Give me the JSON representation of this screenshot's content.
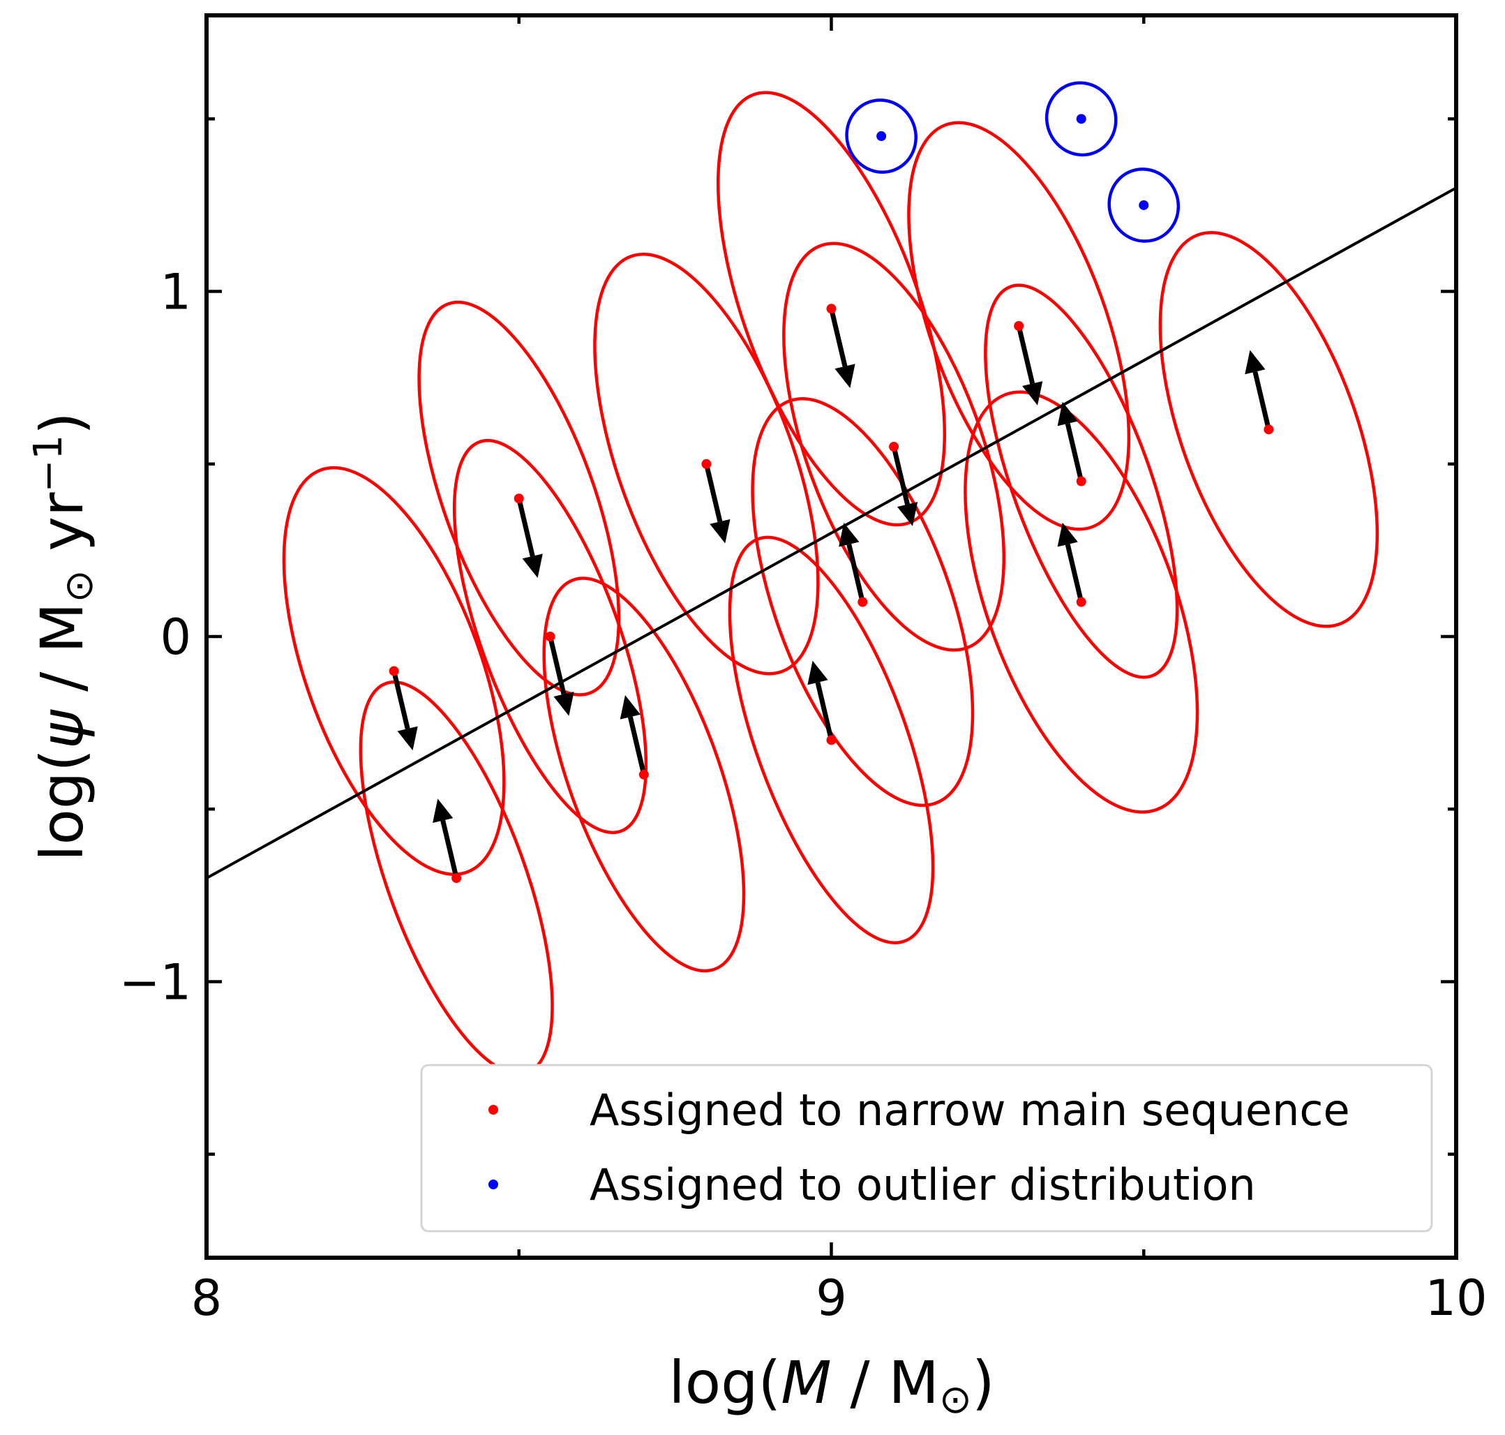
{
  "chart_data": {
    "type": "scatter",
    "xlabel_parts": {
      "pre": "log(",
      "var": "M",
      "sep": " / ",
      "unit": "M",
      "sub": "⊙",
      "post": ")"
    },
    "ylabel_parts": {
      "pre": "log(",
      "var": "ψ",
      "sep": " / ",
      "unit": "M",
      "sub": "⊙",
      "mid": " yr",
      "sup": "−1",
      "post": ")"
    },
    "xlim": [
      8,
      10
    ],
    "ylim": [
      -1.8,
      1.8
    ],
    "xticks": [
      8,
      9,
      10
    ],
    "xtick_labels": [
      "8",
      "9",
      "10"
    ],
    "xticks_minor": [
      8.5,
      9.5
    ],
    "yticks": [
      -1,
      0,
      1
    ],
    "ytick_labels": [
      "−1",
      "0",
      "1"
    ],
    "yticks_minor": [
      -1.5,
      -0.5,
      0.5,
      1.5
    ],
    "fit_line": {
      "x": [
        8,
        10
      ],
      "y": [
        -0.7,
        1.3
      ],
      "color": "#000000"
    },
    "series": [
      {
        "name": "Assigned to narrow main sequence",
        "color": "#ff0000",
        "points": [
          {
            "x": 8.3,
            "y": -0.1,
            "dx": 0.03,
            "dy": -0.23,
            "ex": 0.14,
            "ey": 0.62
          },
          {
            "x": 8.4,
            "y": -0.7,
            "dx": -0.03,
            "dy": 0.23,
            "ex": 0.11,
            "ey": 0.6
          },
          {
            "x": 8.5,
            "y": 0.4,
            "dx": 0.03,
            "dy": -0.23,
            "ex": 0.12,
            "ey": 0.6
          },
          {
            "x": 8.55,
            "y": 0.0,
            "dx": 0.03,
            "dy": -0.23,
            "ex": 0.11,
            "ey": 0.6
          },
          {
            "x": 8.7,
            "y": -0.4,
            "dx": -0.03,
            "dy": 0.23,
            "ex": 0.12,
            "ey": 0.6
          },
          {
            "x": 8.8,
            "y": 0.5,
            "dx": 0.03,
            "dy": -0.23,
            "ex": 0.14,
            "ey": 0.64
          },
          {
            "x": 9.0,
            "y": 0.95,
            "dx": 0.03,
            "dy": -0.23,
            "ex": 0.14,
            "ey": 0.66
          },
          {
            "x": 9.0,
            "y": -0.3,
            "dx": -0.03,
            "dy": 0.23,
            "ex": 0.12,
            "ey": 0.62
          },
          {
            "x": 9.05,
            "y": 0.1,
            "dx": -0.03,
            "dy": 0.23,
            "ex": 0.14,
            "ey": 0.62
          },
          {
            "x": 9.1,
            "y": 0.55,
            "dx": 0.03,
            "dy": -0.23,
            "ex": 0.14,
            "ey": 0.62
          },
          {
            "x": 9.3,
            "y": 0.9,
            "dx": 0.03,
            "dy": -0.23,
            "ex": 0.14,
            "ey": 0.62
          },
          {
            "x": 9.4,
            "y": 0.45,
            "dx": -0.03,
            "dy": 0.23,
            "ex": 0.11,
            "ey": 0.6
          },
          {
            "x": 9.4,
            "y": 0.1,
            "dx": -0.03,
            "dy": 0.23,
            "ex": 0.15,
            "ey": 0.64
          },
          {
            "x": 9.7,
            "y": 0.6,
            "dx": -0.03,
            "dy": 0.23,
            "ex": 0.14,
            "ey": 0.6
          }
        ]
      },
      {
        "name": "Assigned to outlier distribution",
        "color": "#0000ff",
        "points": [
          {
            "x": 9.08,
            "y": 1.45,
            "ex": 0.055,
            "ey": 0.105
          },
          {
            "x": 9.4,
            "y": 1.5,
            "ex": 0.055,
            "ey": 0.105
          },
          {
            "x": 9.5,
            "y": 1.25,
            "ex": 0.055,
            "ey": 0.105
          }
        ]
      }
    ],
    "ellipse_tilt_deg": 20,
    "legend_placement": "lower-right",
    "legend": [
      {
        "label": "Assigned to narrow main sequence",
        "color": "#ff0000"
      },
      {
        "label": "Assigned to outlier distribution",
        "color": "#0000ff"
      }
    ]
  }
}
